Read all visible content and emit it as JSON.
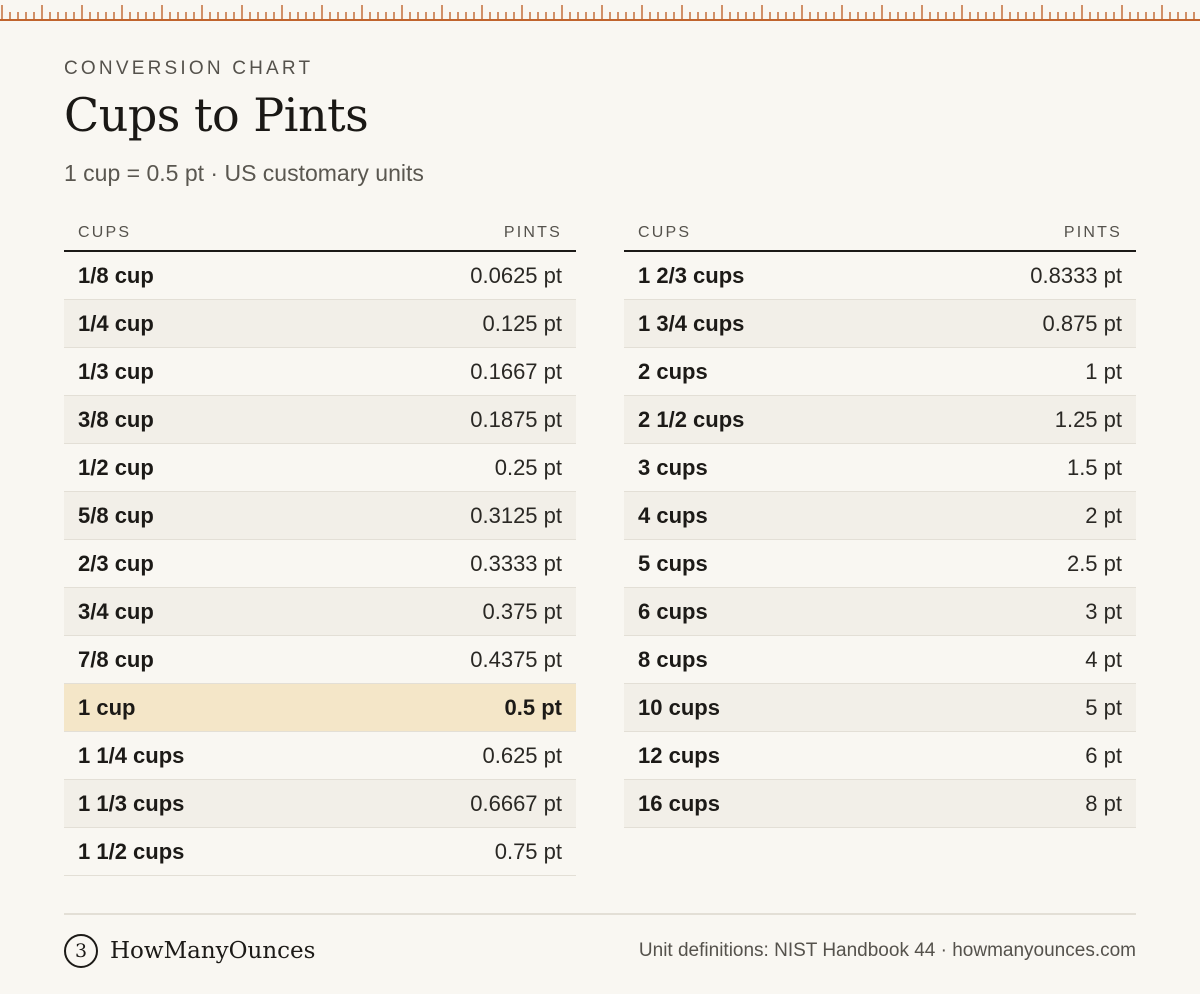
{
  "header": {
    "eyebrow": "CONVERSION CHART",
    "title": "Cups to Pints",
    "subtitle": "1 cup = 0.5 pt · US customary units"
  },
  "colors": {
    "ruler": "#c0642d",
    "highlight": "#f4e6c8",
    "alt_row": "#f2efe8",
    "background": "#f9f7f2"
  },
  "table_left": {
    "col_cups": "CUPS",
    "col_pints": "PINTS",
    "rows": [
      {
        "cups": "1/8 cup",
        "pints": "0.0625 pt"
      },
      {
        "cups": "1/4 cup",
        "pints": "0.125 pt"
      },
      {
        "cups": "1/3 cup",
        "pints": "0.1667 pt"
      },
      {
        "cups": "3/8 cup",
        "pints": "0.1875 pt"
      },
      {
        "cups": "1/2 cup",
        "pints": "0.25 pt"
      },
      {
        "cups": "5/8 cup",
        "pints": "0.3125 pt"
      },
      {
        "cups": "2/3 cup",
        "pints": "0.3333 pt"
      },
      {
        "cups": "3/4 cup",
        "pints": "0.375 pt"
      },
      {
        "cups": "7/8 cup",
        "pints": "0.4375 pt"
      },
      {
        "cups": "1 cup",
        "pints": "0.5 pt",
        "highlight": true
      },
      {
        "cups": "1 1/4 cups",
        "pints": "0.625 pt"
      },
      {
        "cups": "1 1/3 cups",
        "pints": "0.6667 pt"
      },
      {
        "cups": "1 1/2 cups",
        "pints": "0.75 pt"
      }
    ]
  },
  "table_right": {
    "col_cups": "CUPS",
    "col_pints": "PINTS",
    "rows": [
      {
        "cups": "1 2/3 cups",
        "pints": "0.8333 pt"
      },
      {
        "cups": "1 3/4 cups",
        "pints": "0.875 pt"
      },
      {
        "cups": "2 cups",
        "pints": "1 pt"
      },
      {
        "cups": "2 1/2 cups",
        "pints": "1.25 pt"
      },
      {
        "cups": "3 cups",
        "pints": "1.5 pt"
      },
      {
        "cups": "4 cups",
        "pints": "2 pt"
      },
      {
        "cups": "5 cups",
        "pints": "2.5 pt"
      },
      {
        "cups": "6 cups",
        "pints": "3 pt"
      },
      {
        "cups": "8 cups",
        "pints": "4 pt"
      },
      {
        "cups": "10 cups",
        "pints": "5 pt"
      },
      {
        "cups": "12 cups",
        "pints": "6 pt"
      },
      {
        "cups": "16 cups",
        "pints": "8 pt"
      }
    ]
  },
  "footer": {
    "brand_icon": "3",
    "brand_icon_name": "logo-mark-icon",
    "brand_name": "HowManyOunces",
    "source": "Unit definitions: NIST Handbook 44 · howmanyounces.com"
  }
}
